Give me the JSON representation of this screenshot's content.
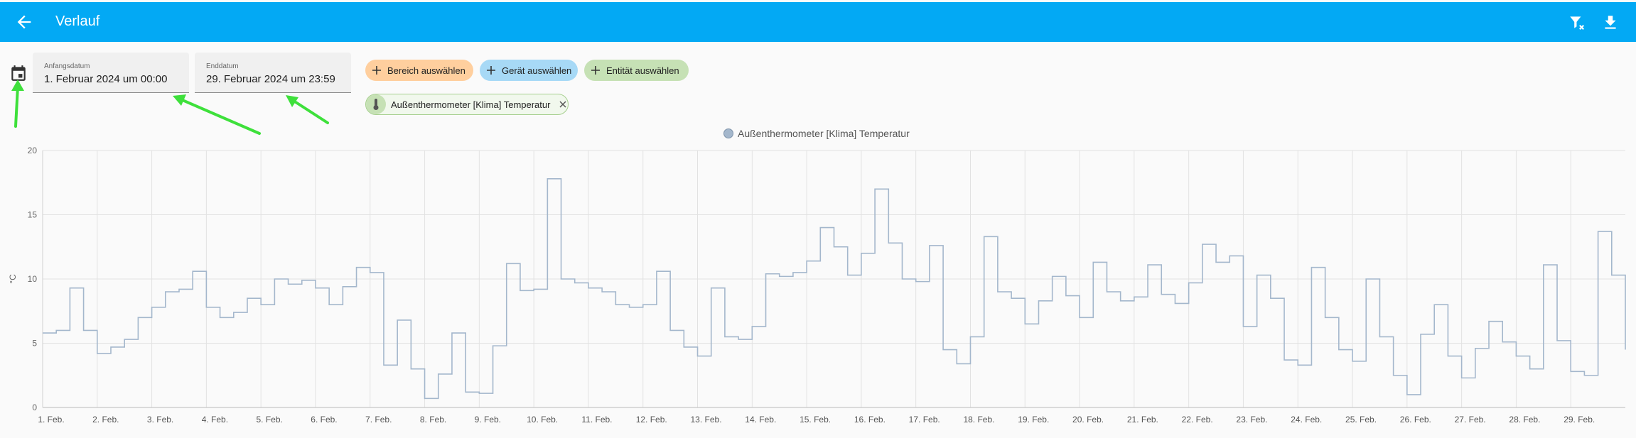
{
  "appbar": {
    "title": "Verlauf",
    "back_icon": "arrow-left-icon",
    "filter_icon": "filter-remove-icon",
    "download_icon": "download-icon",
    "color": "#03a9f4"
  },
  "date_picker": {
    "icon": "calendar-icon",
    "start": {
      "label": "Anfangsdatum",
      "value": "1. Februar 2024 um 00:00"
    },
    "end": {
      "label": "Enddatum",
      "value": "29. Februar 2024 um 23:59"
    }
  },
  "target_chips": {
    "area": {
      "label": "Bereich auswählen",
      "color": "#ffcf9e"
    },
    "device": {
      "label": "Gerät auswählen",
      "color": "#a7d9f6"
    },
    "entity": {
      "label": "Entität auswählen",
      "color": "#c6e1b5"
    },
    "selected": {
      "label": "Außenthermometer [Klima] Temperatur",
      "icon": "thermometer-icon"
    }
  },
  "chart_data": {
    "type": "line",
    "ylabel": "°C",
    "xlabel": "",
    "ylim": [
      0,
      20
    ],
    "yticks": [
      0,
      5,
      10,
      15,
      20
    ],
    "grid": true,
    "legend_position": "top-center",
    "xtick_labels": [
      "1. Feb.",
      "2. Feb.",
      "3. Feb.",
      "4. Feb.",
      "5. Feb.",
      "6. Feb.",
      "7. Feb.",
      "8. Feb.",
      "9. Feb.",
      "10. Feb.",
      "11. Feb.",
      "12. Feb.",
      "13. Feb.",
      "14. Feb.",
      "15. Feb.",
      "16. Feb.",
      "17. Feb.",
      "18. Feb.",
      "19. Feb.",
      "20. Feb.",
      "21. Feb.",
      "22. Feb.",
      "23. Feb.",
      "24. Feb.",
      "25. Feb.",
      "26. Feb.",
      "27. Feb.",
      "28. Feb.",
      "29. Feb."
    ],
    "series": [
      {
        "name": "Außenthermometer [Klima] Temperatur",
        "color": "#a4b7cc",
        "x_unit": "days since 1. Feb. 00:00",
        "x": [
          0,
          0.25,
          0.5,
          0.75,
          1.0,
          1.25,
          1.5,
          1.75,
          2.0,
          2.25,
          2.5,
          2.75,
          3.0,
          3.25,
          3.5,
          3.75,
          4.0,
          4.25,
          4.5,
          4.75,
          5.0,
          5.25,
          5.5,
          5.75,
          6.0,
          6.25,
          6.5,
          6.75,
          7.0,
          7.25,
          7.5,
          7.75,
          8.0,
          8.25,
          8.5,
          8.75,
          9.0,
          9.25,
          9.5,
          9.75,
          10.0,
          10.25,
          10.5,
          10.75,
          11.0,
          11.25,
          11.5,
          11.75,
          12.0,
          12.25,
          12.5,
          12.75,
          13.0,
          13.25,
          13.5,
          13.75,
          14.0,
          14.25,
          14.5,
          14.75,
          15.0,
          15.25,
          15.5,
          15.75,
          16.0,
          16.25,
          16.5,
          16.75,
          17.0,
          17.25,
          17.5,
          17.75,
          18.0,
          18.25,
          18.5,
          18.75,
          19.0,
          19.25,
          19.5,
          19.75,
          20.0,
          20.25,
          20.5,
          20.75,
          21.0,
          21.25,
          21.5,
          21.75,
          22.0,
          22.25,
          22.5,
          22.75,
          23.0,
          23.25,
          23.5,
          23.75,
          24.0,
          24.25,
          24.5,
          24.75,
          25.0,
          25.25,
          25.5,
          25.75,
          26.0,
          26.25,
          26.5,
          26.75,
          27.0,
          27.25,
          27.5,
          27.75,
          28.0,
          28.25,
          28.5,
          28.75,
          29.0
        ],
        "values": [
          5.8,
          6.0,
          9.3,
          6.0,
          4.2,
          4.7,
          5.3,
          7.0,
          7.8,
          9.0,
          9.2,
          10.6,
          7.8,
          7.0,
          7.4,
          8.5,
          8.0,
          10.0,
          9.6,
          9.9,
          9.3,
          8.0,
          9.4,
          10.9,
          10.5,
          3.3,
          6.8,
          3.0,
          0.7,
          2.6,
          5.8,
          1.2,
          1.1,
          4.8,
          11.2,
          9.1,
          9.2,
          17.8,
          10.0,
          9.7,
          9.3,
          9.0,
          8.0,
          7.8,
          8.0,
          10.6,
          6.0,
          4.7,
          4.0,
          9.3,
          5.5,
          5.3,
          6.3,
          10.4,
          10.2,
          10.5,
          11.4,
          14.0,
          12.5,
          10.3,
          12.0,
          17.0,
          12.8,
          10.0,
          9.8,
          12.6,
          4.5,
          3.4,
          5.5,
          13.3,
          9.0,
          8.5,
          6.5,
          8.3,
          10.2,
          8.7,
          7.0,
          11.3,
          9.0,
          8.3,
          8.6,
          11.1,
          8.8,
          8.1,
          9.7,
          12.7,
          11.3,
          11.8,
          6.3,
          10.3,
          8.5,
          3.7,
          3.3,
          10.9,
          7.0,
          4.5,
          3.6,
          10.0,
          5.5,
          2.5,
          1.0,
          5.7,
          8.0,
          4.0,
          2.3,
          4.6,
          6.7,
          5.1,
          4.0,
          3.0,
          11.1,
          5.2,
          2.8,
          2.5,
          13.7,
          10.3,
          4.5
        ]
      }
    ]
  }
}
